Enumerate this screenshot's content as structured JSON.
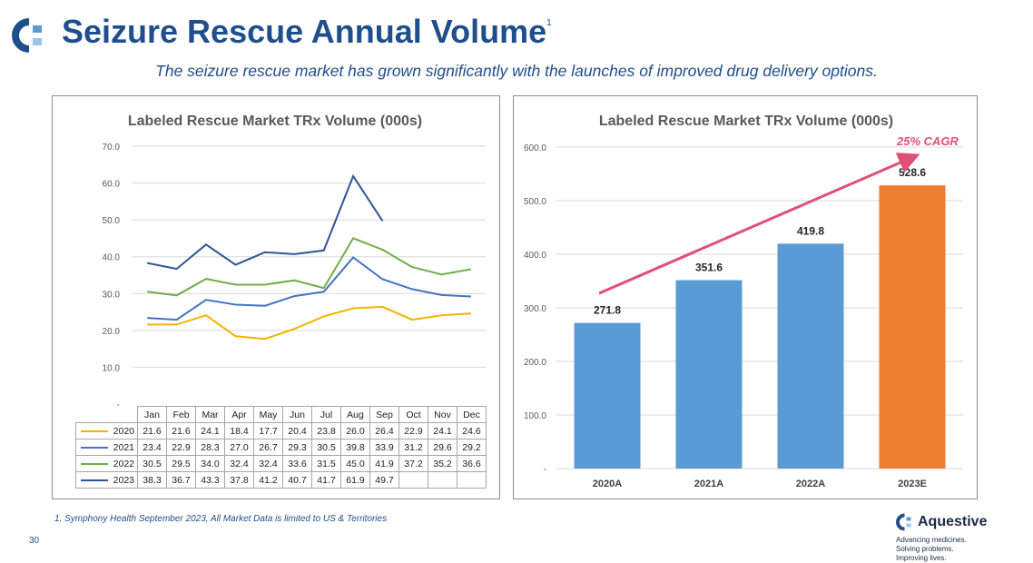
{
  "header": {
    "title": "Seizure Rescue Annual Volume",
    "title_footnote_mark": "1",
    "subtitle": "The seizure rescue market has grown significantly with the launches of improved drug delivery options."
  },
  "footer": {
    "footnote": "1. Symphony Health September 2023, All Market Data is limited to US & Territories",
    "page_number": "30",
    "brand_name": "Aquestive",
    "brand_tagline": "Advancing medicines.\nSolving problems.\nImproving lives."
  },
  "colors": {
    "brand_blue": "#1f4e8c",
    "bar_blue": "#5b9bd5",
    "bar_orange": "#ed7d31",
    "cagr_pink": "#e05074"
  },
  "chart_data": [
    {
      "type": "line",
      "title": "Labeled Rescue Market TRx Volume (000s)",
      "categories": [
        "Jan",
        "Feb",
        "Mar",
        "Apr",
        "May",
        "Jun",
        "Jul",
        "Aug",
        "Sep",
        "Oct",
        "Nov",
        "Dec"
      ],
      "y_ticks": [
        "-",
        "10.0",
        "20.0",
        "30.0",
        "40.0",
        "50.0",
        "60.0",
        "70.0"
      ],
      "ylim": [
        0,
        70
      ],
      "grid": true,
      "series": [
        {
          "name": "2020",
          "color": "#f4b400",
          "values": [
            21.6,
            21.6,
            24.1,
            18.4,
            17.7,
            20.4,
            23.8,
            26.0,
            26.4,
            22.9,
            24.1,
            24.6
          ]
        },
        {
          "name": "2021",
          "color": "#4472c4",
          "values": [
            23.4,
            22.9,
            28.3,
            27.0,
            26.7,
            29.3,
            30.5,
            39.8,
            33.9,
            31.2,
            29.6,
            29.2
          ]
        },
        {
          "name": "2022",
          "color": "#70ad47",
          "values": [
            30.5,
            29.5,
            34.0,
            32.4,
            32.4,
            33.6,
            31.5,
            45.0,
            41.9,
            37.2,
            35.2,
            36.6
          ]
        },
        {
          "name": "2023",
          "color": "#2f5597",
          "values": [
            38.3,
            36.7,
            43.3,
            37.8,
            41.2,
            40.7,
            41.7,
            61.9,
            49.7,
            null,
            null,
            null
          ]
        }
      ],
      "table": {
        "columns": [
          "Jan",
          "Feb",
          "Mar",
          "Apr",
          "May",
          "Jun",
          "Jul",
          "Aug",
          "Sep",
          "Oct",
          "Nov",
          "Dec"
        ],
        "rows": [
          {
            "label": "2020",
            "cells": [
              "21.6",
              "21.6",
              "24.1",
              "18.4",
              "17.7",
              "20.4",
              "23.8",
              "26.0",
              "26.4",
              "22.9",
              "24.1",
              "24.6"
            ]
          },
          {
            "label": "2021",
            "cells": [
              "23.4",
              "22.9",
              "28.3",
              "27.0",
              "26.7",
              "29.3",
              "30.5",
              "39.8",
              "33.9",
              "31.2",
              "29.6",
              "29.2"
            ]
          },
          {
            "label": "2022",
            "cells": [
              "30.5",
              "29.5",
              "34.0",
              "32.4",
              "32.4",
              "33.6",
              "31.5",
              "45.0",
              "41.9",
              "37.2",
              "35.2",
              "36.6"
            ]
          },
          {
            "label": "2023",
            "cells": [
              "38.3",
              "36.7",
              "43.3",
              "37.8",
              "41.2",
              "40.7",
              "41.7",
              "61.9",
              "49.7",
              "",
              "",
              ""
            ]
          }
        ]
      }
    },
    {
      "type": "bar",
      "title": "Labeled Rescue Market TRx Volume (000s)",
      "categories": [
        "2020A",
        "2021A",
        "2022A",
        "2023E"
      ],
      "values": [
        271.8,
        351.6,
        419.8,
        528.6
      ],
      "value_labels": [
        "271.8",
        "351.6",
        "419.8",
        "528.6"
      ],
      "bar_colors": [
        "#5b9bd5",
        "#5b9bd5",
        "#5b9bd5",
        "#ed7d31"
      ],
      "y_ticks": [
        "-",
        "100.0",
        "200.0",
        "300.0",
        "400.0",
        "500.0",
        "600.0"
      ],
      "ylim": [
        0,
        600
      ],
      "grid": true,
      "annotation": "25% CAGR"
    }
  ]
}
